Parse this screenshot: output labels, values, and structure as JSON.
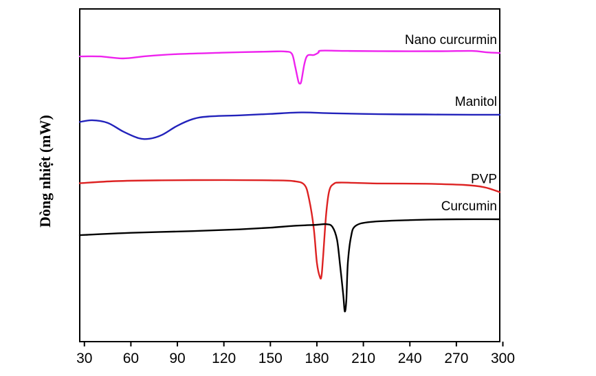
{
  "chart_data": {
    "type": "line",
    "ylabel": "Dòng nhiệt (mW)",
    "xlabel": "",
    "xlim": [
      27,
      298
    ],
    "ylim": [
      0,
      100
    ],
    "y_ticks_shown": false,
    "x_ticks": [
      "30",
      "60",
      "90",
      "120",
      "150",
      "180",
      "210",
      "240",
      "270",
      "300"
    ],
    "grid": false,
    "series": [
      {
        "name": "Nano curcurmin",
        "color": "#ee22ee",
        "points": [
          [
            27,
            89.5
          ],
          [
            40,
            89.5
          ],
          [
            55,
            88.8
          ],
          [
            70,
            89.6
          ],
          [
            90,
            90.3
          ],
          [
            120,
            90.8
          ],
          [
            150,
            91.2
          ],
          [
            160,
            91.2
          ],
          [
            164,
            90.3
          ],
          [
            166,
            86
          ],
          [
            168,
            81
          ],
          [
            169,
            80.1
          ],
          [
            170,
            81
          ],
          [
            172,
            87
          ],
          [
            174,
            89.8
          ],
          [
            178,
            90
          ],
          [
            181,
            90.8
          ],
          [
            183,
            91.5
          ],
          [
            200,
            91.4
          ],
          [
            230,
            91.3
          ],
          [
            260,
            91.3
          ],
          [
            280,
            91.4
          ],
          [
            290,
            90.9
          ],
          [
            298,
            90.7
          ]
        ]
      },
      {
        "name": "Manitol",
        "color": "#2222bb",
        "points": [
          [
            27,
            66.8
          ],
          [
            35,
            67.4
          ],
          [
            45,
            66.5
          ],
          [
            55,
            63.5
          ],
          [
            65,
            61.2
          ],
          [
            72,
            61
          ],
          [
            80,
            62.3
          ],
          [
            90,
            65.5
          ],
          [
            100,
            67.8
          ],
          [
            110,
            68.7
          ],
          [
            130,
            69.1
          ],
          [
            150,
            69.6
          ],
          [
            170,
            70.1
          ],
          [
            190,
            69.8
          ],
          [
            220,
            69.5
          ],
          [
            250,
            69.4
          ],
          [
            280,
            69.3
          ],
          [
            298,
            69.3
          ]
        ]
      },
      {
        "name": "PVP",
        "color": "#dd2222",
        "points": [
          [
            27,
            45.6
          ],
          [
            50,
            46.3
          ],
          [
            80,
            46.6
          ],
          [
            120,
            46.7
          ],
          [
            150,
            46.6
          ],
          [
            165,
            46.3
          ],
          [
            172,
            45
          ],
          [
            175,
            40
          ],
          [
            178,
            30
          ],
          [
            180,
            18
          ],
          [
            182,
            13
          ],
          [
            183,
            13.5
          ],
          [
            184,
            20
          ],
          [
            186,
            35
          ],
          [
            188,
            43
          ],
          [
            191,
            45.4
          ],
          [
            196,
            45.8
          ],
          [
            220,
            45.5
          ],
          [
            250,
            45.4
          ],
          [
            275,
            45
          ],
          [
            288,
            44.2
          ],
          [
            298,
            42.5
          ]
        ]
      },
      {
        "name": "Curcumin",
        "color": "#000000",
        "points": [
          [
            27,
            27.6
          ],
          [
            60,
            28.4
          ],
          [
            100,
            29
          ],
          [
            130,
            29.6
          ],
          [
            150,
            30.2
          ],
          [
            165,
            30.8
          ],
          [
            180,
            31.2
          ],
          [
            186,
            31.4
          ],
          [
            190,
            30.5
          ],
          [
            193,
            26
          ],
          [
            195,
            17
          ],
          [
            197,
            7
          ],
          [
            198,
            1.2
          ],
          [
            199,
            5
          ],
          [
            200,
            18
          ],
          [
            202,
            27
          ],
          [
            205,
            30.8
          ],
          [
            215,
            32.2
          ],
          [
            240,
            32.8
          ],
          [
            270,
            33.1
          ],
          [
            298,
            33.1
          ]
        ]
      }
    ]
  }
}
